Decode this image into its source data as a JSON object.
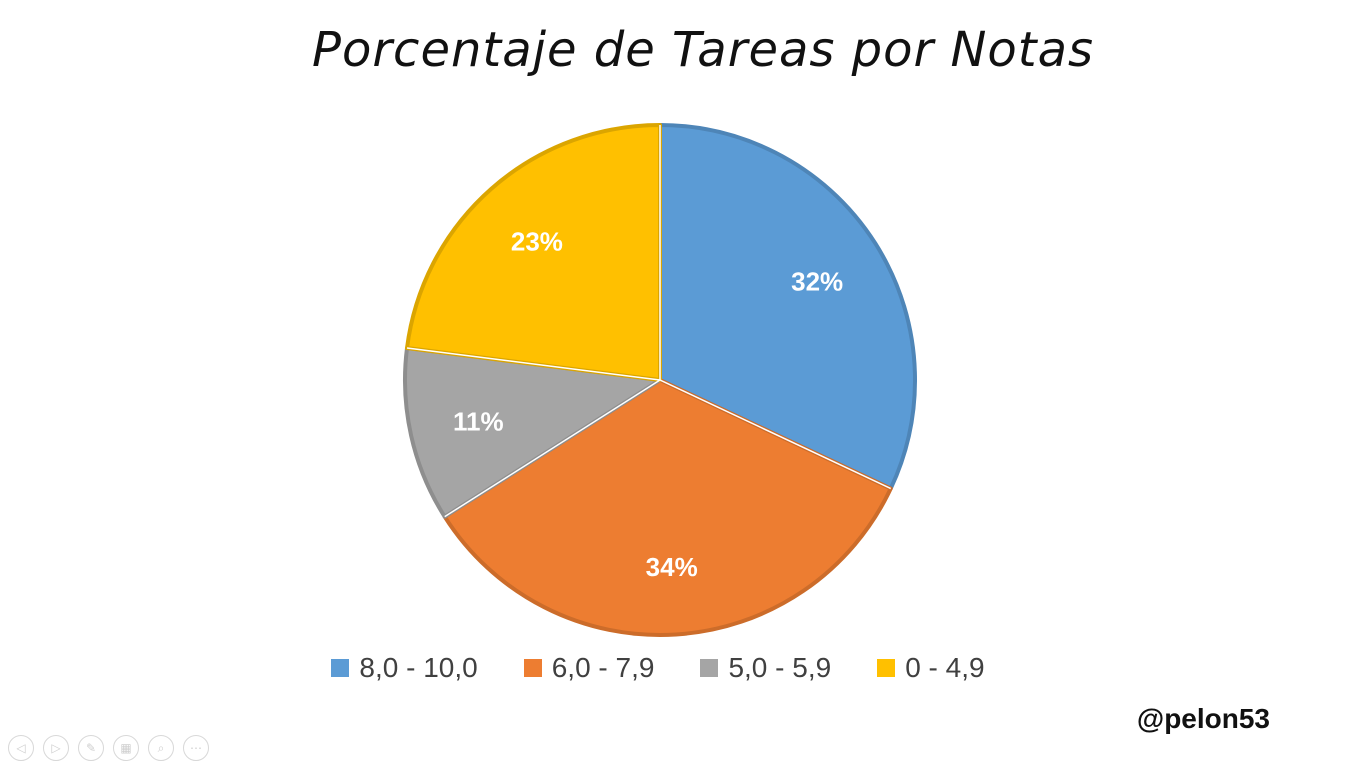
{
  "chart_data": {
    "type": "pie",
    "title": "Porcentaje de Tareas por Notas",
    "categories": [
      "8,0 - 10,0",
      "6,0 - 7,9",
      "5,0 - 5,9",
      "0 - 4,9"
    ],
    "values": [
      32,
      34,
      11,
      23
    ],
    "labels": [
      "32%",
      "34%",
      "11%",
      "23%"
    ],
    "colors": [
      "#5B9BD5",
      "#ED7D31",
      "#A5A5A5",
      "#FFC000"
    ],
    "start_angle_deg": 0,
    "direction": "clockwise",
    "legend_position": "bottom"
  },
  "author": "@pelon53",
  "controls": [
    {
      "name": "previous-icon",
      "glyph": "◁"
    },
    {
      "name": "next-icon",
      "glyph": "▷"
    },
    {
      "name": "pen-icon",
      "glyph": "✎"
    },
    {
      "name": "slides-icon",
      "glyph": "▦"
    },
    {
      "name": "zoom-icon",
      "glyph": "⌕"
    },
    {
      "name": "more-icon",
      "glyph": "⋯"
    }
  ]
}
